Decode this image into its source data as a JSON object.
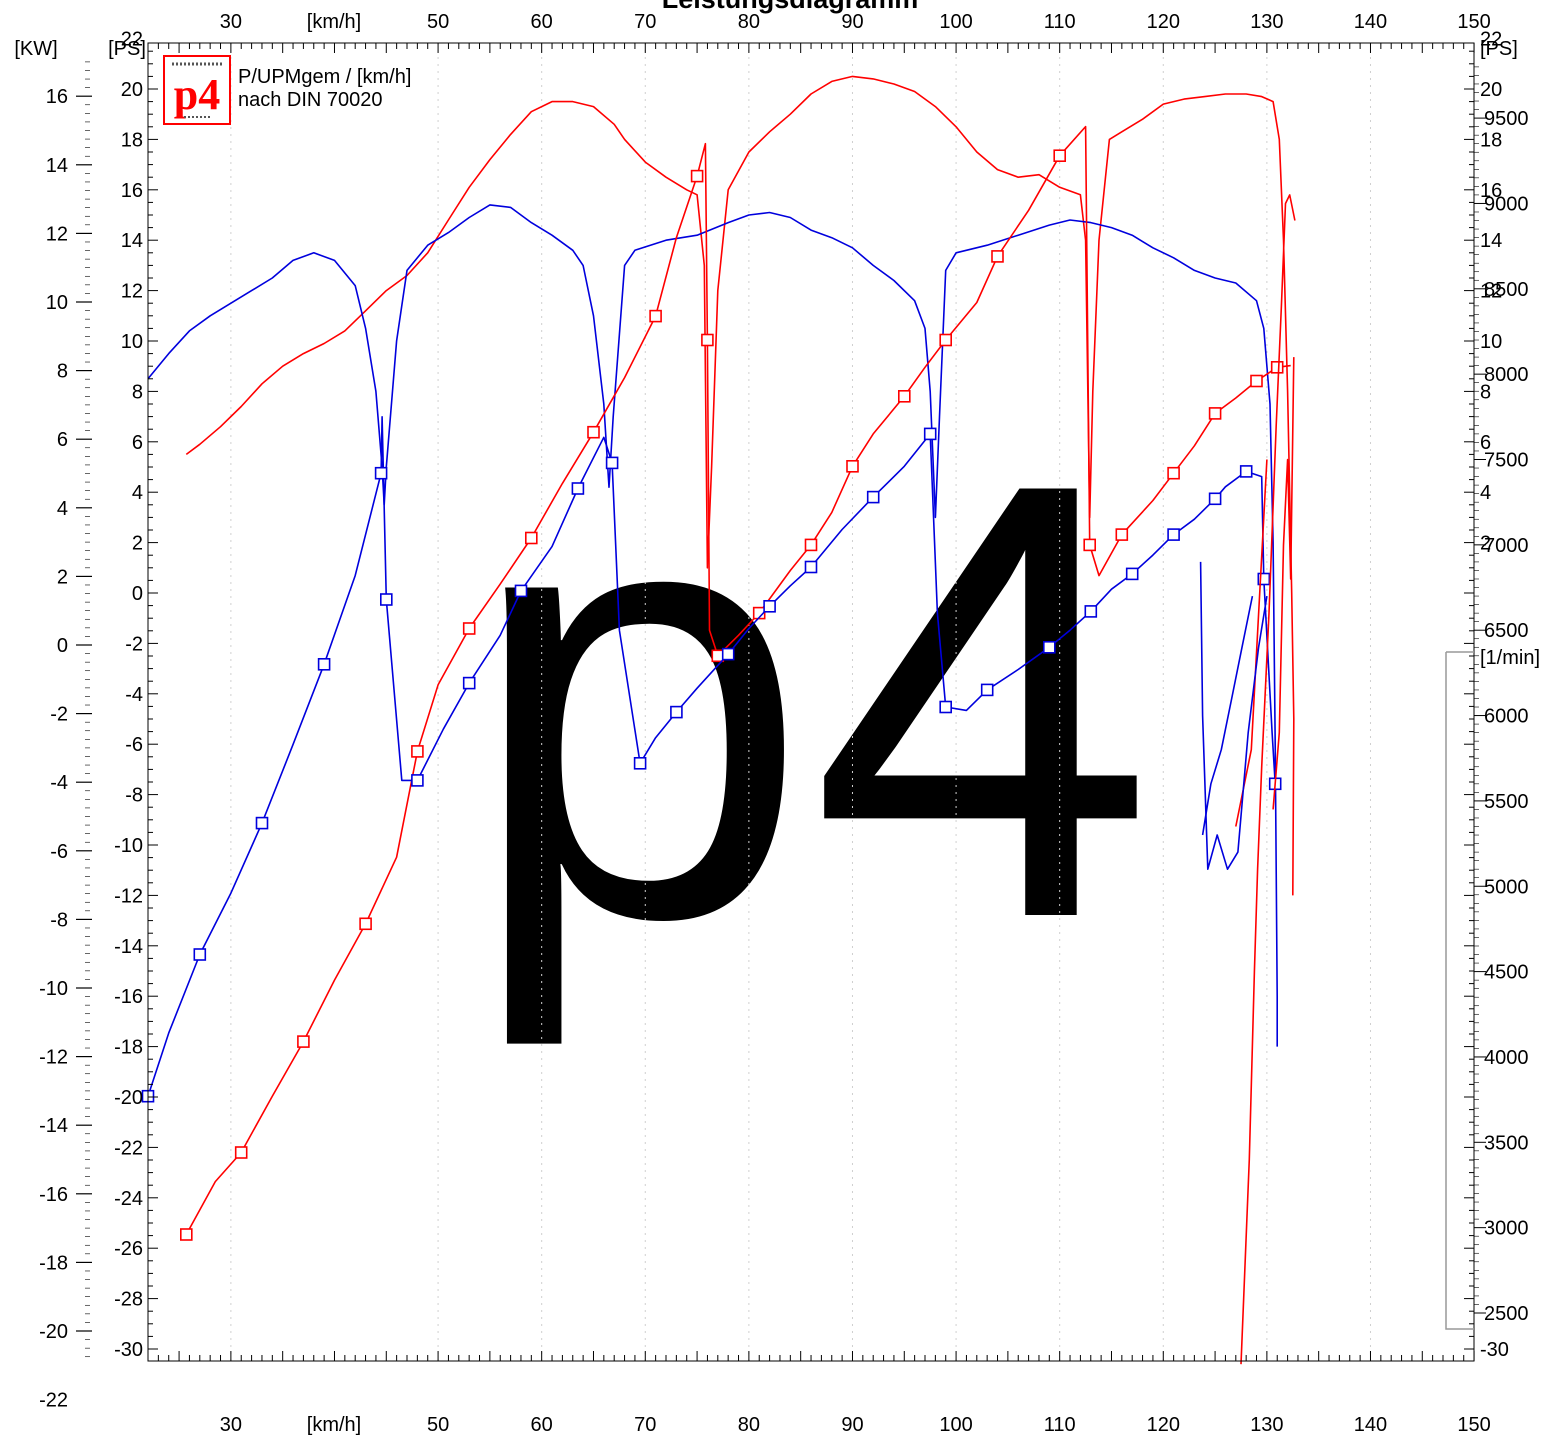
{
  "chart_data": {
    "type": "line",
    "title": "Leistungsdiagramm",
    "subtitle": "P/UPMgem / [km/h]",
    "note": "nach DIN 70020",
    "logo_text": "p4",
    "watermark_text": "p4",
    "x_unit": "[km/h]",
    "x_ticks": [
      30,
      50,
      60,
      70,
      80,
      90,
      100,
      110,
      120,
      130,
      140,
      150
    ],
    "xlim": [
      22,
      150
    ],
    "kw_unit": "[KW]",
    "ps_unit": "[PS]",
    "ps_unit_right": "[PS]",
    "rpm_unit": "[1/min]",
    "kw_ticks": [
      16,
      14,
      12,
      10,
      8,
      6,
      4,
      2,
      0,
      -2,
      -4,
      -6,
      -8,
      -10,
      -12,
      -14,
      -16,
      -18,
      -20,
      -22
    ],
    "ps_ticks": [
      22,
      20,
      18,
      16,
      14,
      12,
      10,
      8,
      6,
      4,
      2,
      0,
      -2,
      -4,
      -6,
      -8,
      -10,
      -12,
      -14,
      -16,
      -18,
      -20,
      -22,
      -24,
      -26,
      -28,
      -30
    ],
    "ps_ticks_right": [
      22,
      20,
      18,
      16,
      14,
      12,
      10,
      8,
      6,
      4,
      2,
      -30
    ],
    "ps_ylim": [
      -30,
      24
    ],
    "rpm_ticks": [
      9500,
      9000,
      8500,
      8000,
      7500,
      7000,
      6500,
      6000,
      5500,
      5000,
      4500,
      4000,
      3500,
      3000,
      2500
    ],
    "rpm_range": [
      2000,
      10000
    ],
    "grid": true,
    "colors": {
      "red": "#ff0000",
      "blue": "#0000dd",
      "frame": "#000000",
      "watermark": "#e9e9e9",
      "logo": "#ff0000"
    },
    "series": [
      {
        "color": "#ff0000",
        "quantity": "power_ps",
        "points": [
          [
            25.7,
            5.5
          ],
          [
            27,
            5.9
          ],
          [
            29,
            6.6
          ],
          [
            31,
            7.4
          ],
          [
            33,
            8.3
          ],
          [
            35,
            9.0
          ],
          [
            37,
            9.5
          ],
          [
            39,
            9.9
          ],
          [
            41,
            10.4
          ],
          [
            43,
            11.2
          ],
          [
            45,
            12.0
          ],
          [
            47,
            12.6
          ],
          [
            49,
            13.5
          ],
          [
            51,
            14.8
          ],
          [
            53,
            16.1
          ],
          [
            55,
            17.2
          ],
          [
            57,
            18.2
          ],
          [
            59,
            19.1
          ],
          [
            61,
            19.5
          ],
          [
            63,
            19.5
          ],
          [
            65,
            19.3
          ],
          [
            67,
            18.6
          ],
          [
            68,
            18.0
          ],
          [
            70,
            17.1
          ],
          [
            72,
            16.5
          ],
          [
            74,
            16.0
          ],
          [
            75,
            15.8
          ],
          [
            75.7,
            13.0
          ],
          [
            76,
            1.0
          ],
          [
            76.4,
            5.0
          ],
          [
            77,
            12.0
          ],
          [
            78,
            16.0
          ],
          [
            80,
            17.5
          ],
          [
            82,
            18.3
          ],
          [
            84,
            19.0
          ],
          [
            86,
            19.8
          ],
          [
            88,
            20.3
          ],
          [
            90,
            20.5
          ],
          [
            92,
            20.4
          ],
          [
            94,
            20.2
          ],
          [
            96,
            19.9
          ],
          [
            98,
            19.3
          ],
          [
            100,
            18.5
          ],
          [
            102,
            17.5
          ],
          [
            104,
            16.8
          ],
          [
            106,
            16.5
          ],
          [
            108,
            16.6
          ],
          [
            110,
            16.1
          ],
          [
            112,
            15.8
          ],
          [
            112.5,
            14.0
          ],
          [
            112.9,
            3.0
          ],
          [
            113.2,
            8.0
          ],
          [
            113.8,
            14.0
          ],
          [
            114.8,
            18.0
          ],
          [
            116,
            18.3
          ],
          [
            118,
            18.8
          ],
          [
            120,
            19.4
          ],
          [
            122,
            19.6
          ],
          [
            124,
            19.7
          ],
          [
            126,
            19.8
          ],
          [
            128,
            19.8
          ],
          [
            129.5,
            19.7
          ],
          [
            130.6,
            19.5
          ],
          [
            131.2,
            18.0
          ],
          [
            131.6,
            14.0
          ],
          [
            132.0,
            8.0
          ],
          [
            132.4,
            0.0
          ],
          [
            132.6,
            -5.0
          ],
          [
            132.5,
            -12.0
          ]
        ]
      },
      {
        "color": "#0000dd",
        "quantity": "power_ps",
        "points": [
          [
            22,
            8.5
          ],
          [
            24,
            9.5
          ],
          [
            26,
            10.4
          ],
          [
            28,
            11.0
          ],
          [
            30,
            11.5
          ],
          [
            32,
            12.0
          ],
          [
            34,
            12.5
          ],
          [
            36,
            13.2
          ],
          [
            38,
            13.5
          ],
          [
            40,
            13.2
          ],
          [
            42,
            12.2
          ],
          [
            43,
            10.5
          ],
          [
            44,
            8.0
          ],
          [
            44.6,
            5.0
          ],
          [
            44.8,
            3.5
          ],
          [
            45,
            5.0
          ],
          [
            46,
            10.0
          ],
          [
            47,
            12.8
          ],
          [
            49,
            13.8
          ],
          [
            51,
            14.3
          ],
          [
            53,
            14.9
          ],
          [
            55,
            15.4
          ],
          [
            57,
            15.3
          ],
          [
            59,
            14.7
          ],
          [
            61,
            14.2
          ],
          [
            63,
            13.6
          ],
          [
            64,
            13.0
          ],
          [
            65,
            11.0
          ],
          [
            66,
            7.5
          ],
          [
            66.5,
            4.2
          ],
          [
            66.9,
            7.0
          ],
          [
            68,
            13.0
          ],
          [
            69,
            13.6
          ],
          [
            72,
            14.0
          ],
          [
            75,
            14.2
          ],
          [
            78,
            14.7
          ],
          [
            80,
            15.0
          ],
          [
            82,
            15.1
          ],
          [
            84,
            14.9
          ],
          [
            86,
            14.4
          ],
          [
            88,
            14.1
          ],
          [
            90,
            13.7
          ],
          [
            92,
            13.0
          ],
          [
            94,
            12.4
          ],
          [
            96,
            11.6
          ],
          [
            97,
            10.5
          ],
          [
            97.5,
            8.0
          ],
          [
            98,
            3.0
          ],
          [
            98.4,
            7.0
          ],
          [
            99,
            12.8
          ],
          [
            100,
            13.5
          ],
          [
            103,
            13.8
          ],
          [
            106,
            14.2
          ],
          [
            109,
            14.6
          ],
          [
            111,
            14.8
          ],
          [
            113,
            14.7
          ],
          [
            115,
            14.5
          ],
          [
            117,
            14.2
          ],
          [
            119,
            13.7
          ],
          [
            121,
            13.3
          ],
          [
            123,
            12.8
          ],
          [
            125,
            12.5
          ],
          [
            127,
            12.3
          ],
          [
            129,
            11.6
          ],
          [
            129.7,
            10.5
          ],
          [
            130.3,
            7.5
          ],
          [
            130.6,
            2.0
          ],
          [
            130.8,
            -6.0
          ],
          [
            131.0,
            -16.0
          ],
          [
            131.0,
            -18.0
          ]
        ]
      }
    ],
    "rpm_series": [
      {
        "color": "#ff0000",
        "quantity": "rpm",
        "markers": true,
        "points": [
          [
            25.7,
            2960
          ],
          [
            28.5,
            3270
          ],
          [
            31,
            3440
          ],
          [
            34,
            3770
          ],
          [
            37,
            4090
          ],
          [
            40,
            4450
          ],
          [
            43,
            4780
          ],
          [
            46,
            5170
          ],
          [
            48,
            5790
          ],
          [
            50,
            6180
          ],
          [
            53,
            6510
          ],
          [
            56,
            6770
          ],
          [
            59,
            7040
          ],
          [
            62,
            7360
          ],
          [
            65,
            7660
          ],
          [
            68,
            7980
          ],
          [
            71,
            8340
          ],
          [
            73,
            8800
          ],
          [
            75,
            9160
          ],
          [
            75.8,
            9350
          ],
          [
            76,
            8200
          ],
          [
            76.2,
            6500
          ],
          [
            77,
            6350
          ],
          [
            79,
            6470
          ],
          [
            81,
            6600
          ],
          [
            84,
            6850
          ],
          [
            86,
            7000
          ],
          [
            88,
            7190
          ],
          [
            90,
            7460
          ],
          [
            92,
            7650
          ],
          [
            95,
            7870
          ],
          [
            97,
            8040
          ],
          [
            99,
            8200
          ],
          [
            102,
            8420
          ],
          [
            104,
            8690
          ],
          [
            107,
            8960
          ],
          [
            110,
            9280
          ],
          [
            112.5,
            9450
          ],
          [
            112.9,
            7000
          ],
          [
            113.8,
            6820
          ],
          [
            116,
            7060
          ],
          [
            119,
            7260
          ],
          [
            121,
            7420
          ],
          [
            123,
            7580
          ],
          [
            125,
            7770
          ],
          [
            127,
            7860
          ],
          [
            129,
            7960
          ],
          [
            130,
            8000
          ],
          [
            131,
            8040
          ],
          [
            132.3,
            8050
          ]
        ]
      },
      {
        "color": "#0000dd",
        "quantity": "rpm",
        "markers": true,
        "points": [
          [
            22,
            3770
          ],
          [
            24,
            4140
          ],
          [
            27,
            4600
          ],
          [
            30,
            4960
          ],
          [
            33,
            5370
          ],
          [
            36,
            5830
          ],
          [
            39,
            6300
          ],
          [
            42,
            6820
          ],
          [
            44.5,
            7420
          ],
          [
            44.6,
            7750
          ],
          [
            45,
            6680
          ],
          [
            46.5,
            5620
          ],
          [
            48,
            5620
          ],
          [
            50.5,
            5920
          ],
          [
            53,
            6190
          ],
          [
            56,
            6470
          ],
          [
            58,
            6730
          ],
          [
            61,
            6990
          ],
          [
            63.5,
            7330
          ],
          [
            66,
            7630
          ],
          [
            66.8,
            7480
          ],
          [
            67.5,
            6500
          ],
          [
            69.5,
            5720
          ],
          [
            71,
            5870
          ],
          [
            73,
            6020
          ],
          [
            75,
            6160
          ],
          [
            78,
            6360
          ],
          [
            80,
            6510
          ],
          [
            82,
            6640
          ],
          [
            84,
            6760
          ],
          [
            86,
            6870
          ],
          [
            89,
            7090
          ],
          [
            92,
            7280
          ],
          [
            95,
            7460
          ],
          [
            97.5,
            7650
          ],
          [
            98.2,
            6600
          ],
          [
            99,
            6050
          ],
          [
            101,
            6030
          ],
          [
            103,
            6150
          ],
          [
            106,
            6270
          ],
          [
            109,
            6400
          ],
          [
            111,
            6500
          ],
          [
            113,
            6610
          ],
          [
            115,
            6740
          ],
          [
            117,
            6830
          ],
          [
            119,
            6940
          ],
          [
            121,
            7060
          ],
          [
            123,
            7150
          ],
          [
            125,
            7270
          ],
          [
            126,
            7340
          ],
          [
            128,
            7430
          ],
          [
            129.5,
            7400
          ],
          [
            129.7,
            6800
          ],
          [
            130.5,
            5900
          ],
          [
            130.8,
            5600
          ]
        ]
      }
    ],
    "rpm_fragments": [
      {
        "color": "#ff0000",
        "points": [
          [
            127.5,
            2200
          ],
          [
            128.3,
            3400
          ],
          [
            128.8,
            4500
          ],
          [
            129.1,
            5100
          ],
          [
            129.5,
            5700
          ],
          [
            130.2,
            6600
          ],
          [
            130.9,
            7700
          ],
          [
            131.4,
            8400
          ],
          [
            131.8,
            9000
          ],
          [
            132.2,
            9050
          ],
          [
            132.7,
            8900
          ]
        ]
      },
      {
        "color": "#ff0000",
        "points": [
          [
            130.6,
            5450
          ],
          [
            131.2,
            5900
          ],
          [
            131.6,
            7000
          ],
          [
            132.0,
            7500
          ],
          [
            132.3,
            6800
          ],
          [
            132.6,
            8100
          ]
        ]
      },
      {
        "color": "#ff0000",
        "points": [
          [
            127,
            5350
          ],
          [
            128.5,
            5800
          ],
          [
            130,
            7500
          ]
        ]
      },
      {
        "color": "#0000dd",
        "points": [
          [
            123.6,
            6900
          ],
          [
            123.8,
            6000
          ],
          [
            124.3,
            5100
          ],
          [
            125.2,
            5300
          ],
          [
            126.2,
            5100
          ],
          [
            127.2,
            5200
          ],
          [
            128.2,
            5900
          ],
          [
            129.2,
            6400
          ],
          [
            130.0,
            6700
          ]
        ]
      },
      {
        "color": "#0000dd",
        "points": [
          [
            123.8,
            5300
          ],
          [
            124.6,
            5600
          ],
          [
            125.6,
            5800
          ],
          [
            126.6,
            6100
          ],
          [
            127.6,
            6400
          ],
          [
            128.6,
            6700
          ]
        ]
      }
    ]
  }
}
